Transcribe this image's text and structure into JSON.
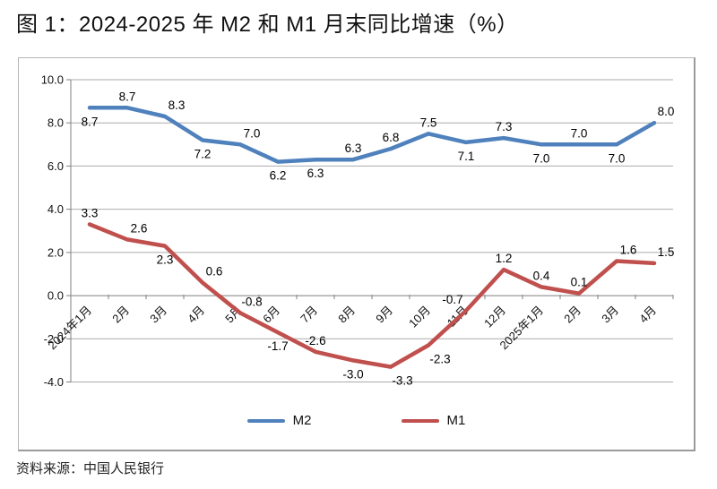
{
  "title": "图 1：2024-2025 年 M2 和 M1 月末同比增速（%）",
  "source": "资料来源：中国人民银行",
  "legend": {
    "items": [
      {
        "label": "M2"
      },
      {
        "label": "M1"
      }
    ]
  },
  "colors": {
    "m2_line": "#4F81BD",
    "m1_line": "#C0504D",
    "gridline": "#ABABAB",
    "axis_line": "#7F7F7F",
    "label_text": "#000000",
    "chart_border": "#9A9A9A"
  },
  "chart_data": {
    "type": "line",
    "title": "图 1：2024-2025 年 M2 和 M1 月末同比增速（%）",
    "categories": [
      "2024年1月",
      "2月",
      "3月",
      "4月",
      "5月",
      "6月",
      "7月",
      "8月",
      "9月",
      "10月",
      "11月",
      "12月",
      "2025年1月",
      "2月",
      "3月",
      "4月"
    ],
    "series": [
      {
        "name": "M2",
        "color": "#4F81BD",
        "values": [
          8.7,
          8.7,
          8.3,
          7.2,
          7.0,
          6.2,
          6.3,
          6.3,
          6.8,
          7.5,
          7.1,
          7.3,
          7.0,
          7.0,
          7.0,
          8.0
        ],
        "label_pos": [
          "below",
          "above",
          "above-right",
          "below",
          "above-right",
          "below",
          "below",
          "above",
          "above",
          "above",
          "below",
          "above",
          "below",
          "above",
          "below",
          "above-right"
        ]
      },
      {
        "name": "M1",
        "color": "#C0504D",
        "values": [
          3.3,
          2.6,
          2.3,
          0.6,
          -0.8,
          -1.7,
          -2.6,
          -3.0,
          -3.3,
          -2.3,
          -0.7,
          1.2,
          0.4,
          0.1,
          1.6,
          1.5
        ],
        "label_pos": [
          "above",
          "above-right",
          "below",
          "above-right",
          "above-right",
          "below",
          "above",
          "below",
          "below-right",
          "below-right",
          "above-left",
          "above",
          "above",
          "above",
          "above-right",
          "above-right"
        ]
      }
    ],
    "y_axis": {
      "min": -4.0,
      "max": 10.0,
      "step": 2.0,
      "tick_labels": [
        "10.0",
        "8.0",
        "6.0",
        "4.0",
        "2.0",
        "0.0",
        "-2.0",
        "-4.0"
      ]
    },
    "x_axis": {
      "label_rotation_deg": -45
    },
    "grid": true,
    "data_labels": true,
    "legend_position": "bottom",
    "ylabel": "",
    "xlabel": ""
  }
}
